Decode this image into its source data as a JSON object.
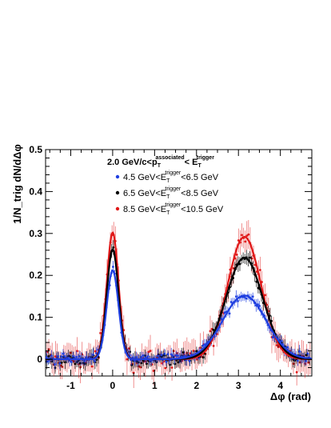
{
  "chart_data": {
    "type": "scatter",
    "title": "",
    "xlabel": "Δφ (rad)",
    "ylabel": "1/N_trig dN/dΔφ",
    "xlim": [
      -1.6,
      4.75
    ],
    "ylim": [
      -0.04,
      0.5
    ],
    "x_ticks": [
      "-1",
      "0",
      "1",
      "2",
      "3",
      "4"
    ],
    "y_ticks": [
      "0",
      "0.1",
      "0.2",
      "0.3",
      "0.4",
      "0.5"
    ],
    "legend": {
      "placement": "top-left",
      "header": {
        "pre": "2.0 GeV/c<p",
        "sub1": "T",
        "sup1": "associated",
        "mid": "< E",
        "sub2": "T",
        "sup2": "trigger"
      },
      "entries": [
        {
          "pre": "4.5 GeV<E",
          "sub": "T",
          "sup": "trigger",
          "post": "<6.5 GeV",
          "color": "#1f3fe0"
        },
        {
          "pre": "6.5 GeV<E",
          "sub": "T",
          "sup": "trigger",
          "post": "<8.5 GeV",
          "color": "#000000"
        },
        {
          "pre": "8.5 GeV<E",
          "sub": "T",
          "sup": "trigger",
          "post": "<10.5 GeV",
          "color": "#e01818"
        }
      ]
    },
    "series": [
      {
        "near_amp": 0.212,
        "near_sigma": 0.14,
        "away_amp": 0.152,
        "away_sigma": 0.52,
        "away_mu": 3.1416,
        "pedestal": 0.0,
        "point_scatter": 0.01,
        "error": 0.012,
        "color": "#1f3fe0"
      },
      {
        "near_amp": 0.262,
        "near_sigma": 0.14,
        "away_amp": 0.242,
        "away_sigma": 0.44,
        "away_mu": 3.1416,
        "pedestal": 0.0,
        "point_scatter": 0.012,
        "error": 0.015,
        "color": "#000000"
      },
      {
        "near_amp": 0.302,
        "near_sigma": 0.14,
        "away_amp": 0.292,
        "away_sigma": 0.4,
        "away_mu": 3.1416,
        "pedestal": 0.0,
        "point_scatter": 0.022,
        "error": 0.03,
        "color": "#e01818"
      }
    ]
  }
}
